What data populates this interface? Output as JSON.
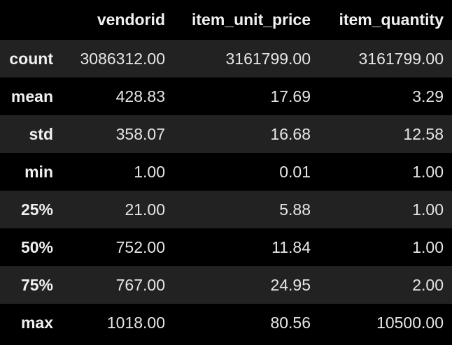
{
  "table": {
    "columns": [
      "",
      "vendorid",
      "item_unit_price",
      "item_quantity"
    ],
    "rows": [
      {
        "label": "count",
        "values": [
          "3086312.00",
          "3161799.00",
          "3161799.00"
        ]
      },
      {
        "label": "mean",
        "values": [
          "428.83",
          "17.69",
          "3.29"
        ]
      },
      {
        "label": "std",
        "values": [
          "358.07",
          "16.68",
          "12.58"
        ]
      },
      {
        "label": "min",
        "values": [
          "1.00",
          "0.01",
          "1.00"
        ]
      },
      {
        "label": "25%",
        "values": [
          "21.00",
          "5.88",
          "1.00"
        ]
      },
      {
        "label": "50%",
        "values": [
          "752.00",
          "11.84",
          "1.00"
        ]
      },
      {
        "label": "75%",
        "values": [
          "767.00",
          "24.95",
          "2.00"
        ]
      },
      {
        "label": "max",
        "values": [
          "1018.00",
          "80.56",
          "10500.00"
        ]
      }
    ]
  },
  "colors": {
    "background": "#000000",
    "stripe": "#222222",
    "text": "#e6e6e6"
  }
}
